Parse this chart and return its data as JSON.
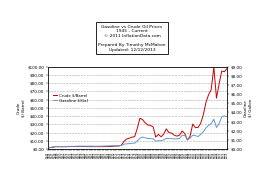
{
  "title_line1": "Gasoline vs Crude Oil Prices",
  "title_line2": "1945 - Current",
  "title_line3": "© 2011 InflationData.com",
  "title_line4": "Prepared By Timothy McMahon",
  "title_line5": "Updated: 12/12/2013",
  "ylabel_left": "Crude\n$/ Barrel",
  "ylabel_right": "Gasoline\n$/ Gallon",
  "ylim_left": [
    0,
    100
  ],
  "ylim_right": [
    0,
    9
  ],
  "left_yticks": [
    0,
    10,
    20,
    30,
    40,
    50,
    60,
    70,
    80,
    90,
    100
  ],
  "left_ytick_labels": [
    "$0.00",
    "$10.00",
    "$20.00",
    "$30.00",
    "$40.00",
    "$50.00",
    "$60.00",
    "$70.00",
    "$80.00",
    "$90.00",
    "$100.00"
  ],
  "right_yticks": [
    0,
    1,
    2,
    3,
    4,
    5,
    6,
    7,
    8,
    9
  ],
  "right_ytick_labels": [
    "$0.00",
    "$1.00",
    "$2.00",
    "$3.00",
    "$4.00",
    "$5.00",
    "$6.00",
    "$7.00",
    "$8.00",
    "$9.00"
  ],
  "crude_color": "#cc0000",
  "gasoline_color": "#6699cc",
  "legend_crude": "Crude $/Barrel",
  "legend_gasoline": "Gasoline $/Gal",
  "bg_color": "#ffffff",
  "grid_color": "#aaaaaa",
  "years": [
    1945,
    1946,
    1947,
    1948,
    1949,
    1950,
    1951,
    1952,
    1953,
    1954,
    1955,
    1956,
    1957,
    1958,
    1959,
    1960,
    1961,
    1962,
    1963,
    1964,
    1965,
    1966,
    1967,
    1968,
    1969,
    1970,
    1971,
    1972,
    1973,
    1974,
    1975,
    1976,
    1977,
    1978,
    1979,
    1980,
    1981,
    1982,
    1983,
    1984,
    1985,
    1986,
    1987,
    1988,
    1989,
    1990,
    1991,
    1992,
    1993,
    1994,
    1995,
    1996,
    1997,
    1998,
    1999,
    2000,
    2001,
    2002,
    2003,
    2004,
    2005,
    2006,
    2007,
    2008,
    2009,
    2010,
    2011,
    2012,
    2013
  ],
  "crude": [
    1.05,
    1.63,
    2.16,
    2.77,
    2.77,
    2.77,
    2.77,
    2.77,
    2.92,
    2.99,
    2.93,
    2.94,
    3.09,
    3.01,
    3.0,
    2.91,
    2.89,
    2.9,
    2.89,
    2.88,
    2.86,
    2.88,
    2.92,
    2.94,
    3.09,
    3.39,
    3.6,
    3.6,
    4.75,
    9.35,
    12.21,
    13.1,
    14.4,
    14.95,
    25.1,
    37.42,
    35.75,
    31.83,
    29.08,
    28.75,
    26.92,
    14.44,
    17.75,
    14.87,
    17.97,
    24.5,
    20.0,
    19.25,
    16.75,
    15.66,
    16.75,
    22.0,
    18.64,
    10.87,
    15.56,
    30.37,
    25.98,
    26.15,
    31.08,
    41.51,
    56.59,
    66.05,
    72.34,
    99.67,
    61.95,
    79.48,
    94.88,
    94.05,
    97.98
  ],
  "gasoline": [
    0.15,
    0.17,
    0.23,
    0.26,
    0.27,
    0.27,
    0.27,
    0.27,
    0.29,
    0.29,
    0.29,
    0.3,
    0.31,
    0.31,
    0.31,
    0.31,
    0.31,
    0.31,
    0.3,
    0.3,
    0.31,
    0.32,
    0.33,
    0.34,
    0.35,
    0.36,
    0.36,
    0.36,
    0.39,
    0.53,
    0.57,
    0.59,
    0.62,
    0.63,
    0.86,
    1.19,
    1.31,
    1.22,
    1.16,
    1.13,
    1.12,
    0.86,
    0.9,
    0.9,
    1.0,
    1.15,
    1.14,
    1.13,
    1.11,
    1.11,
    1.15,
    1.51,
    1.46,
    1.06,
    1.17,
    1.51,
    1.46,
    1.36,
    1.59,
    1.88,
    2.3,
    2.59,
    2.8,
    3.27,
    2.35,
    2.79,
    3.53,
    3.64,
    3.53
  ]
}
